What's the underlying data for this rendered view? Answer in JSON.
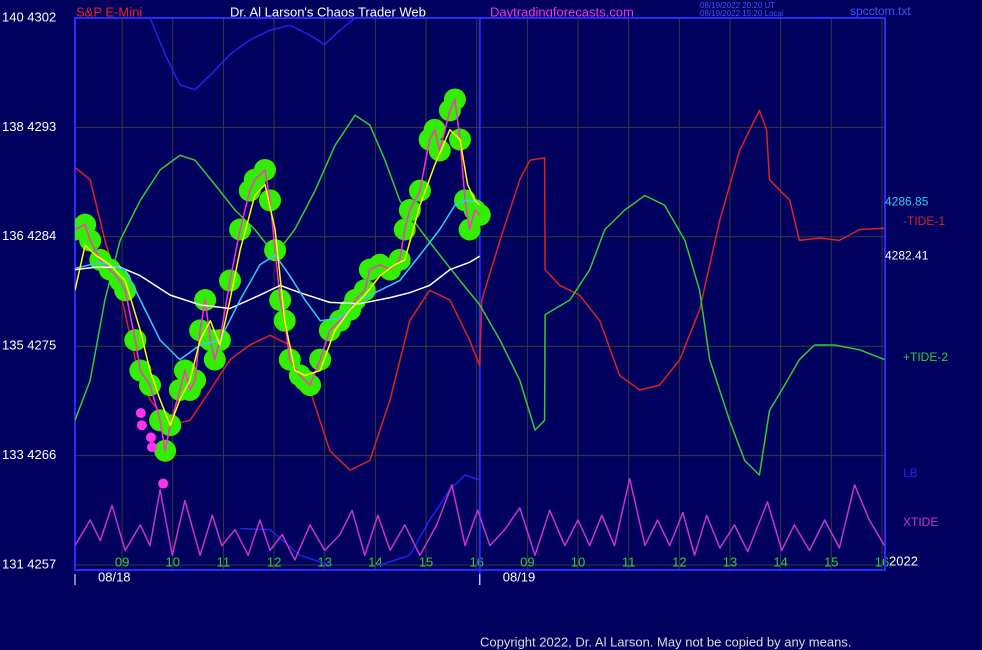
{
  "chart_data": {
    "type": "line",
    "title": "Dr. Al Larson's Chaos Trader Web",
    "symbol": "S&P E-Mini",
    "site": "Daytradingforecasts.com",
    "timestamps": [
      "08/19/2022 20:20 UT",
      "08/19/2022 15:20 Local"
    ],
    "file": "spcctom.txt",
    "copyright": "Copyright 2022, Dr. Al Larson. May not be copied by any means.",
    "year": "2022",
    "dates": [
      "08/18",
      "08/19"
    ],
    "background": "#00005e",
    "grid": true,
    "grid_color": "#3a3a3a",
    "session_break": 16.06,
    "xlim": [
      8.07,
      24.06
    ],
    "xticks": [
      {
        "value": 9,
        "label": "09"
      },
      10,
      11,
      12,
      13,
      14,
      15,
      16,
      {
        "value": 17,
        "label": "09"
      },
      {
        "value": 18,
        "label": "10"
      },
      {
        "value": 19,
        "label": "11"
      },
      {
        "value": 20,
        "label": "12"
      },
      {
        "value": 21,
        "label": "13"
      },
      {
        "value": 22,
        "label": "14"
      },
      {
        "value": 23,
        "label": "15"
      },
      {
        "value": 24,
        "label": "16"
      }
    ],
    "ylim": [
      4257,
      4302
    ],
    "yticks": [
      {
        "value": 4302,
        "label": "140 4302"
      },
      {
        "value": 4293,
        "label": "138 4293"
      },
      {
        "value": 4284,
        "label": "136 4284"
      },
      {
        "value": 4275,
        "label": "135 4275"
      },
      {
        "value": 4266,
        "label": "133 4266"
      },
      {
        "value": 4257,
        "label": "131 4257"
      }
    ],
    "series": [
      {
        "color": "#ff33cc",
        "marker_color": "#33ee00",
        "x": [
          8.07,
          8.27,
          8.37,
          8.57,
          8.76,
          8.96,
          9.06,
          9.26,
          9.36,
          9.55,
          9.75,
          9.85,
          9.95,
          10.14,
          10.24,
          10.34,
          10.44,
          10.54,
          10.64,
          10.74,
          10.83,
          10.93,
          11.13,
          11.33,
          11.52,
          11.62,
          11.82,
          11.92,
          12.02,
          12.12,
          12.21,
          12.31,
          12.51,
          12.61,
          12.71,
          12.91,
          13.1,
          13.3,
          13.5,
          13.6,
          13.79,
          13.89,
          14.09,
          14.29,
          14.48,
          14.58,
          14.68,
          14.88,
          15.07,
          15.17,
          15.27,
          15.47,
          15.57,
          15.67,
          15.77,
          15.86,
          15.96,
          16.06
        ],
        "values": [
          4284.6,
          4285.0,
          4283.7,
          4282.1,
          4281.3,
          4280.4,
          4279.6,
          4275.5,
          4273.0,
          4271.8,
          4268.9,
          4266.4,
          4268.5,
          4271.4,
          4273.0,
          4271.4,
          4272.2,
          4276.3,
          4278.8,
          4275.5,
          4273.9,
          4275.5,
          4280.4,
          4284.6,
          4287.8,
          4288.7,
          4289.5,
          4287.0,
          4282.9,
          4278.8,
          4277.1,
          4273.9,
          4272.6,
          4272.2,
          4271.8,
          4273.9,
          4276.3,
          4277.1,
          4278.0,
          4278.8,
          4279.6,
          4281.3,
          4281.7,
          4281.3,
          4282.1,
          4284.6,
          4286.2,
          4287.8,
          4292.0,
          4292.8,
          4291.1,
          4294.4,
          4295.3,
          4292.0,
          4287.0,
          4284.6,
          4286.2,
          4285.8
        ]
      },
      {
        "color": "#ffff00",
        "x": [
          8.07,
          8.27,
          8.47,
          8.76,
          9.06,
          9.36,
          9.55,
          9.75,
          9.95,
          10.14,
          10.34,
          10.54,
          10.74,
          10.93,
          11.13,
          11.33,
          11.62,
          11.82,
          12.02,
          12.21,
          12.41,
          12.61,
          12.91,
          13.2,
          13.5,
          13.79,
          14.09,
          14.38,
          14.58,
          14.88,
          15.17,
          15.47,
          15.67,
          15.82,
          15.96,
          16.06
        ],
        "values": [
          4279.6,
          4283.3,
          4282.5,
          4281.7,
          4280.4,
          4276.3,
          4273.0,
          4270.6,
          4268.5,
          4270.6,
          4272.2,
          4275.5,
          4277.1,
          4275.1,
          4278.8,
          4282.9,
          4287.4,
          4288.3,
          4284.6,
          4277.1,
          4273.0,
          4272.6,
          4273.0,
          4276.3,
          4278.0,
          4279.2,
          4280.8,
          4281.7,
          4282.1,
          4286.6,
          4289.9,
          4292.8,
          4292.0,
          4288.3,
          4287.0,
          4286.6
        ]
      },
      {
        "color": "#33ccff",
        "last_label": 4286.85,
        "x": [
          8.07,
          8.57,
          9.06,
          9.36,
          9.75,
          10.14,
          10.54,
          10.93,
          11.33,
          11.72,
          12.02,
          12.31,
          12.61,
          12.91,
          13.3,
          13.69,
          14.09,
          14.48,
          14.88,
          15.27,
          15.57,
          15.77,
          16.06
        ],
        "values": [
          4281.4,
          4281.9,
          4281.3,
          4278.8,
          4275.5,
          4273.9,
          4275.1,
          4275.5,
          4278.8,
          4281.7,
          4282.5,
          4280.8,
          4278.8,
          4277.1,
          4277.3,
          4278.8,
          4279.6,
          4280.4,
          4282.5,
          4284.6,
          4286.6,
          4287.0,
          4286.85
        ]
      },
      {
        "color": "#ffffff",
        "last_label": 4282.41,
        "x": [
          8.07,
          8.47,
          8.96,
          9.36,
          9.95,
          10.54,
          11.13,
          11.72,
          12.12,
          12.51,
          13.1,
          13.69,
          14.29,
          14.68,
          15.07,
          15.47,
          15.86,
          16.06
        ],
        "values": [
          4281.3,
          4281.5,
          4281.5,
          4280.8,
          4279.2,
          4278.4,
          4278.1,
          4279.2,
          4280.0,
          4279.4,
          4278.6,
          4278.5,
          4279.0,
          4279.4,
          4280.0,
          4281.3,
          4281.9,
          4282.41
        ]
      },
      {
        "name": "-TIDE-1",
        "color": "#dd2222",
        "x": [
          8.07,
          8.37,
          8.66,
          8.96,
          9.26,
          9.55,
          9.95,
          10.34,
          10.74,
          11.13,
          11.52,
          11.92,
          12.31,
          12.71,
          13.1,
          13.5,
          13.89,
          14.29,
          14.68,
          15.07,
          15.47,
          15.86,
          16.06,
          16.1,
          16.46,
          16.85,
          17.05,
          17.34,
          17.35,
          17.64,
          18.03,
          18.43,
          18.82,
          19.22,
          19.61,
          20.01,
          20.4,
          20.8,
          21.19,
          21.58,
          21.72,
          21.78,
          22.18,
          22.37,
          22.77,
          23.16,
          23.56,
          24.05
        ],
        "values": [
          4289.7,
          4288.7,
          4283.7,
          4279.6,
          4273.9,
          4270.6,
          4268.5,
          4268.9,
          4271.4,
          4273.9,
          4275.1,
          4275.9,
          4275.1,
          4271.4,
          4266.4,
          4264.8,
          4265.6,
          4270.6,
          4277.1,
          4279.6,
          4278.8,
          4275.5,
          4273.4,
          4278.8,
          4283.7,
          4288.7,
          4290.3,
          4290.5,
          4281.3,
          4280.0,
          4279.2,
          4277.1,
          4272.6,
          4271.4,
          4271.8,
          4273.9,
          4278.0,
          4285.4,
          4291.1,
          4294.4,
          4292.8,
          4288.7,
          4287.0,
          4283.7,
          4283.9,
          4283.7,
          4284.6,
          4284.7
        ]
      },
      {
        "name": "+TIDE-2",
        "color": "#33cc33",
        "x": [
          8.07,
          8.37,
          8.66,
          8.96,
          9.36,
          9.75,
          10.14,
          10.44,
          10.83,
          11.23,
          11.62,
          12.02,
          12.41,
          12.81,
          13.2,
          13.6,
          13.89,
          14.19,
          14.48,
          14.88,
          15.27,
          15.67,
          16.06,
          16.46,
          16.85,
          17.15,
          17.34,
          17.35,
          17.84,
          18.23,
          18.53,
          18.92,
          19.32,
          19.71,
          20.11,
          20.4,
          20.6,
          20.99,
          21.29,
          21.58,
          21.78,
          22.08,
          22.37,
          22.67,
          23.06,
          23.56,
          24.05
        ],
        "values": [
          4268.9,
          4272.2,
          4278.8,
          4283.7,
          4287.0,
          4289.5,
          4290.7,
          4290.3,
          4288.3,
          4286.2,
          4284.6,
          4282.5,
          4284.6,
          4287.8,
          4291.5,
          4294.0,
          4293.2,
          4290.3,
          4287.0,
          4284.6,
          4282.5,
          4280.4,
          4278.4,
          4275.5,
          4272.2,
          4268.1,
          4268.9,
          4277.6,
          4278.8,
          4281.3,
          4284.6,
          4286.2,
          4287.4,
          4286.6,
          4283.7,
          4279.6,
          4273.9,
          4268.9,
          4265.6,
          4264.4,
          4269.7,
          4271.8,
          4273.9,
          4275.1,
          4275.1,
          4274.7,
          4273.9
        ]
      },
      {
        "name": "LB",
        "color": "#2222ee",
        "x": [
          9.55,
          9.85,
          10.14,
          10.44,
          10.74,
          11.13,
          11.52,
          11.92,
          12.31,
          12.71,
          13.0,
          13.3,
          13.6,
          13.7,
          11.33,
          11.92,
          12.51,
          13.1,
          13.5,
          14.09,
          14.68,
          15.07,
          15.47,
          15.77,
          16.06
        ],
        "values": [
          4302.0,
          4299.0,
          4296.5,
          4296.1,
          4297.3,
          4299.0,
          4300.2,
          4301.0,
          4301.4,
          4300.6,
          4299.8,
          4301.0,
          4302.0,
          null,
          4260.0,
          4259.9,
          4257.8,
          4257.0,
          null,
          4257.0,
          4257.8,
          4260.7,
          4263.2,
          4264.4,
          4264.0
        ]
      },
      {
        "name": "XTIDE",
        "color": "#cc33cc",
        "x": [
          8.07,
          8.37,
          8.57,
          8.8,
          9.06,
          9.36,
          9.55,
          9.75,
          9.99,
          10.24,
          10.54,
          10.78,
          10.97,
          11.23,
          11.49,
          11.72,
          11.92,
          12.16,
          12.41,
          12.71,
          13.0,
          13.3,
          13.54,
          13.79,
          14.05,
          14.29,
          14.58,
          14.88,
          15.21,
          15.51,
          15.77,
          16.02,
          16.26,
          16.55,
          16.85,
          17.15,
          17.44,
          17.74,
          18.0,
          18.23,
          18.47,
          18.72,
          19.02,
          19.32,
          19.57,
          19.81,
          20.07,
          20.3,
          20.54,
          20.8,
          21.09,
          21.35,
          21.74,
          22.02,
          22.27,
          22.57,
          22.87,
          23.16,
          23.46,
          23.75,
          24.05
        ],
        "values": [
          4258.6,
          4260.7,
          4259.0,
          4261.9,
          4258.2,
          4260.3,
          4258.6,
          4263.2,
          4257.8,
          4262.3,
          4257.8,
          4261.1,
          4258.6,
          4259.9,
          4257.8,
          4260.7,
          4258.2,
          4259.5,
          4257.4,
          4260.3,
          4258.2,
          4259.5,
          4261.5,
          4257.8,
          4261.1,
          4258.2,
          4260.3,
          4257.8,
          4260.3,
          4263.6,
          4258.6,
          4261.5,
          4258.6,
          4259.9,
          4261.7,
          4257.8,
          4261.5,
          4258.6,
          4260.7,
          4258.6,
          4261.1,
          4258.6,
          4264.1,
          4258.6,
          4260.7,
          4258.6,
          4261.3,
          4257.8,
          4261.1,
          4258.4,
          4260.3,
          4258.1,
          4262.2,
          4258.2,
          4260.3,
          4258.2,
          4260.7,
          4258.4,
          4263.6,
          4260.7,
          4258.6
        ]
      }
    ],
    "signals": {
      "color": "#ff33ee",
      "x": [
        9.37,
        9.39,
        9.57,
        9.59,
        9.81
      ],
      "values": [
        4269.5,
        4268.5,
        4267.5,
        4266.7,
        4263.7
      ]
    }
  }
}
